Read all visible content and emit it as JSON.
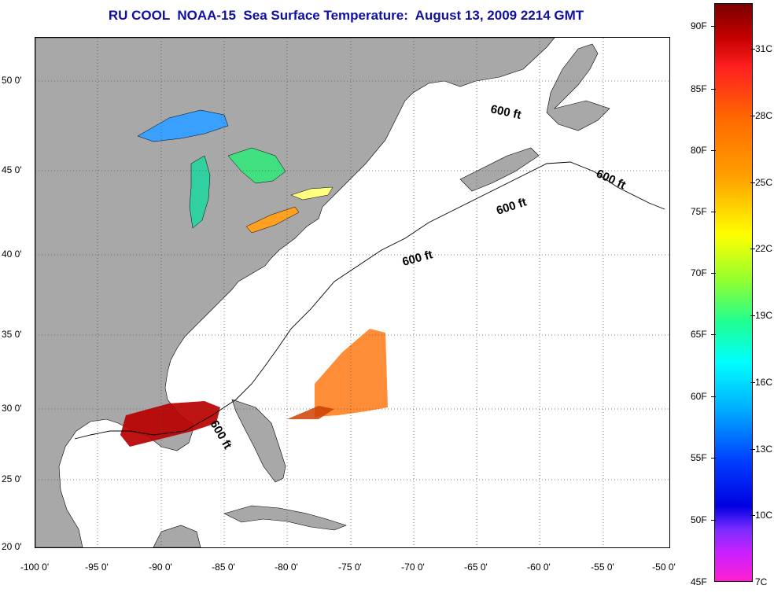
{
  "title": "RU COOL  NOAA-15  Sea Surface Temperature:  August 13, 2009 2214 GMT",
  "lat_labels": [
    "50 0'",
    "45 0'",
    "40 0'",
    "35 0'",
    "30 0'",
    "25 0'",
    "20 0'"
  ],
  "lon_labels": [
    "-100 0'",
    "-95 0'",
    "-90 0'",
    "-85 0'",
    "-80 0'",
    "-75 0'",
    "-70 0'",
    "-65 0'",
    "-60 0'",
    "-55 0'",
    "-50 0'"
  ],
  "contour_labels": [
    "600 ft",
    "600 ft",
    "600 ft",
    "600 ft",
    "600 ft"
  ],
  "colorbar": {
    "fahrenheit": [
      "90F",
      "85F",
      "80F",
      "75F",
      "70F",
      "65F",
      "60F",
      "55F",
      "50F",
      "45F"
    ],
    "celsius": [
      "31C",
      "28C",
      "25C",
      "22C",
      "19C",
      "16C",
      "13C",
      "10C",
      "7C"
    ]
  },
  "colors": {
    "land": "#a8a8a8",
    "ocean": "#ffffff",
    "title": "#1010a0"
  }
}
